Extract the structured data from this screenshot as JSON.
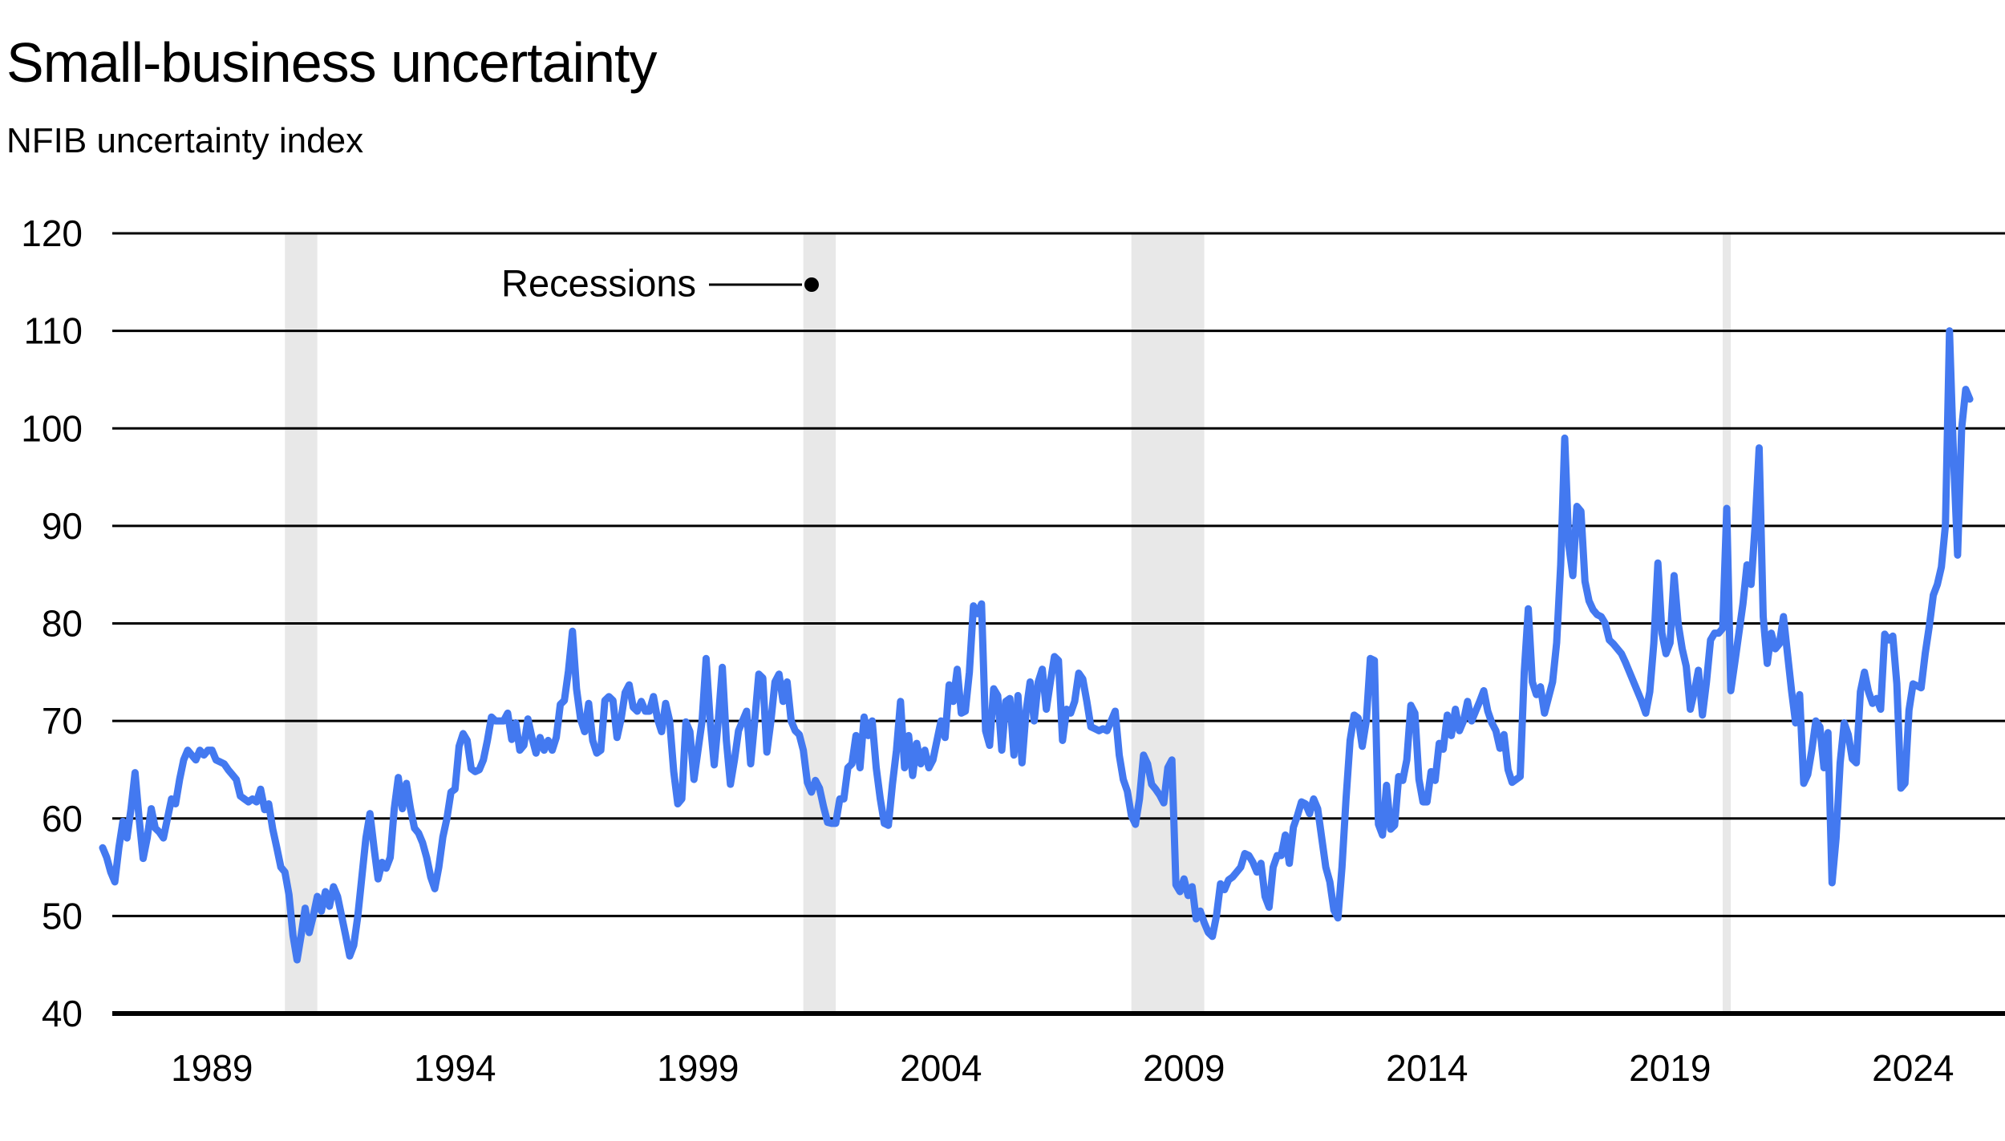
{
  "title": "Small-business uncertainty",
  "subtitle": "NFIB uncertainty index",
  "annotation": {
    "label": "Recessions"
  },
  "colors": {
    "line": "#4379f0",
    "recession_band": "#e8e8e8",
    "grid": "#000000",
    "axis": "#000000",
    "text": "#000000",
    "background": "#ffffff"
  },
  "chart_data": {
    "type": "line",
    "title": "Small-business uncertainty",
    "subtitle": "NFIB uncertainty index",
    "xlabel": "",
    "ylabel": "NFIB uncertainty index",
    "ylim": [
      40,
      120
    ],
    "yticks": [
      40,
      50,
      60,
      70,
      80,
      90,
      100,
      110,
      120
    ],
    "xticks": [
      1989,
      1994,
      1999,
      2004,
      2009,
      2014,
      2019,
      2024
    ],
    "grid": "horizontal",
    "legend": "none",
    "frequency": "monthly",
    "x_start": "1986-10",
    "x_end": "2025-03",
    "recessions": [
      {
        "from": "1990-07",
        "to": "1991-03"
      },
      {
        "from": "2001-03",
        "to": "2001-11"
      },
      {
        "from": "2007-12",
        "to": "2009-06"
      },
      {
        "from": "2020-02",
        "to": "2020-04"
      }
    ],
    "series": [
      {
        "name": "NFIB uncertainty index",
        "values": [
          57,
          56,
          54.5,
          53.5,
          57,
          59.7,
          58,
          61,
          64.7,
          60,
          55.9,
          58,
          61,
          59,
          58.6,
          58,
          60,
          62,
          61.5,
          64,
          66,
          67,
          66.5,
          66,
          67,
          66.5,
          67,
          67,
          66,
          65.8,
          65.6,
          65,
          64.5,
          64,
          62.3,
          62,
          61.7,
          62,
          61.7,
          63,
          60.9,
          61.5,
          58.9,
          57,
          55,
          54.5,
          52.2,
          48,
          45.5,
          48,
          50.8,
          48.3,
          50,
          52,
          50.5,
          52.5,
          51,
          53,
          52,
          50,
          48,
          45.9,
          47,
          50,
          54,
          58,
          60.5,
          57,
          53.8,
          55.5,
          54.9,
          56,
          61,
          64.2,
          61,
          63.6,
          61,
          59,
          58.5,
          57.5,
          56,
          54,
          52.8,
          55,
          58.1,
          60,
          62.7,
          63,
          67.4,
          68.7,
          68,
          65.1,
          64.8,
          65,
          66,
          68,
          70.4,
          70,
          70,
          70,
          70.8,
          68.1,
          69.8,
          67,
          67.5,
          70.2,
          68.3,
          66.7,
          68.3,
          67,
          68,
          67,
          68.3,
          71.7,
          72.1,
          75.1,
          79.2,
          73.3,
          70.2,
          68.9,
          71.8,
          68,
          66.7,
          67,
          72.1,
          72.5,
          72.1,
          68.3,
          70.2,
          72.9,
          73.7,
          71.4,
          71,
          72,
          71,
          71,
          72.5,
          70.2,
          68.9,
          71.8,
          70,
          64.8,
          61.5,
          62,
          69.9,
          68.9,
          64,
          67,
          70,
          76.4,
          70,
          65.5,
          70,
          75.5,
          68,
          63.5,
          66,
          69,
          70,
          71,
          65.6,
          70,
          74.8,
          74.4,
          66.8,
          70,
          74,
          74.8,
          72,
          74,
          70,
          69,
          68.6,
          67,
          63.7,
          62.7,
          63.9,
          63.1,
          61.2,
          59.6,
          59.5,
          59.5,
          62,
          62,
          65.2,
          65.6,
          68.5,
          65.2,
          70.4,
          68.5,
          70,
          65.2,
          62,
          59.5,
          59.3,
          63.5,
          67,
          72,
          65.2,
          68.5,
          64.4,
          67.7,
          65.6,
          67,
          65.2,
          66,
          68,
          70,
          68.3,
          73.7,
          72,
          75.3,
          70.8,
          71,
          75,
          81.8,
          81,
          82,
          69,
          67.5,
          73.3,
          72.6,
          67,
          72,
          72.3,
          66.5,
          72.6,
          65.7,
          71,
          74,
          70,
          74,
          75.3,
          71.2,
          74,
          76.6,
          76.2,
          68,
          71.2,
          70.8,
          72,
          74.9,
          74.3,
          72,
          69.4,
          69.2,
          69,
          69.2,
          69,
          70,
          71,
          66.5,
          64,
          62.8,
          60.3,
          59.4,
          62,
          66.5,
          65.6,
          63.5,
          63,
          62.4,
          61.6,
          65.2,
          66,
          53.2,
          52.5,
          53.8,
          52.1,
          53,
          49.7,
          50.5,
          49.3,
          48.3,
          47.9,
          50,
          53.3,
          52.7,
          53.7,
          54,
          54.5,
          55,
          56.4,
          56.2,
          55.5,
          54.5,
          55.4,
          52,
          50.9,
          55,
          56.2,
          56.2,
          58.3,
          55.4,
          59.1,
          60.3,
          61.7,
          61.5,
          60.5,
          62,
          61,
          58,
          55,
          53.5,
          50.6,
          49.8,
          55,
          62,
          68,
          70.6,
          70.3,
          67.4,
          70,
          76.4,
          76.2,
          59.4,
          58.3,
          63.4,
          58.9,
          59.3,
          64.3,
          63.9,
          66,
          71.6,
          70.8,
          64,
          61.7,
          61.7,
          64.8,
          63.9,
          67.7,
          67.1,
          70.6,
          68.5,
          71.2,
          69,
          70,
          72,
          70,
          71,
          72,
          73.1,
          71,
          69.8,
          69,
          67.2,
          68.6,
          65,
          63.7,
          64,
          64.3,
          75,
          81.5,
          74,
          72.7,
          73.5,
          70.8,
          72.4,
          74,
          78,
          86,
          99,
          88,
          84.9,
          92,
          91.5,
          84.3,
          82.3,
          81.4,
          80.9,
          80.7,
          80,
          78.3,
          77.9,
          77.4,
          76.9,
          76,
          75,
          74,
          73,
          72,
          70.8,
          73,
          78,
          86.2,
          79,
          76.9,
          78,
          84.9,
          80,
          77.4,
          75.6,
          71.2,
          73,
          75.2,
          70.6,
          74,
          78.3,
          79,
          79,
          79.5,
          91.8,
          73.1,
          76,
          79,
          82,
          86,
          84,
          90,
          98,
          80.7,
          75.9,
          79,
          77.4,
          77.9,
          80.7,
          76.9,
          73.1,
          69.8,
          72.7,
          63.6,
          64.5,
          67,
          70,
          69.4,
          65.2,
          68.8,
          53.4,
          58,
          65.7,
          69.8,
          68.6,
          66.1,
          65.7,
          73,
          75,
          73,
          71.8,
          72.3,
          71.2,
          78.9,
          78.3,
          78.7,
          73.8,
          63.1,
          63.6,
          71.1,
          73.8,
          73.6,
          73.4,
          76.9,
          79.7,
          82.9,
          84,
          85.8,
          90.1,
          110,
          97,
          87,
          100,
          104,
          103
        ]
      }
    ]
  }
}
